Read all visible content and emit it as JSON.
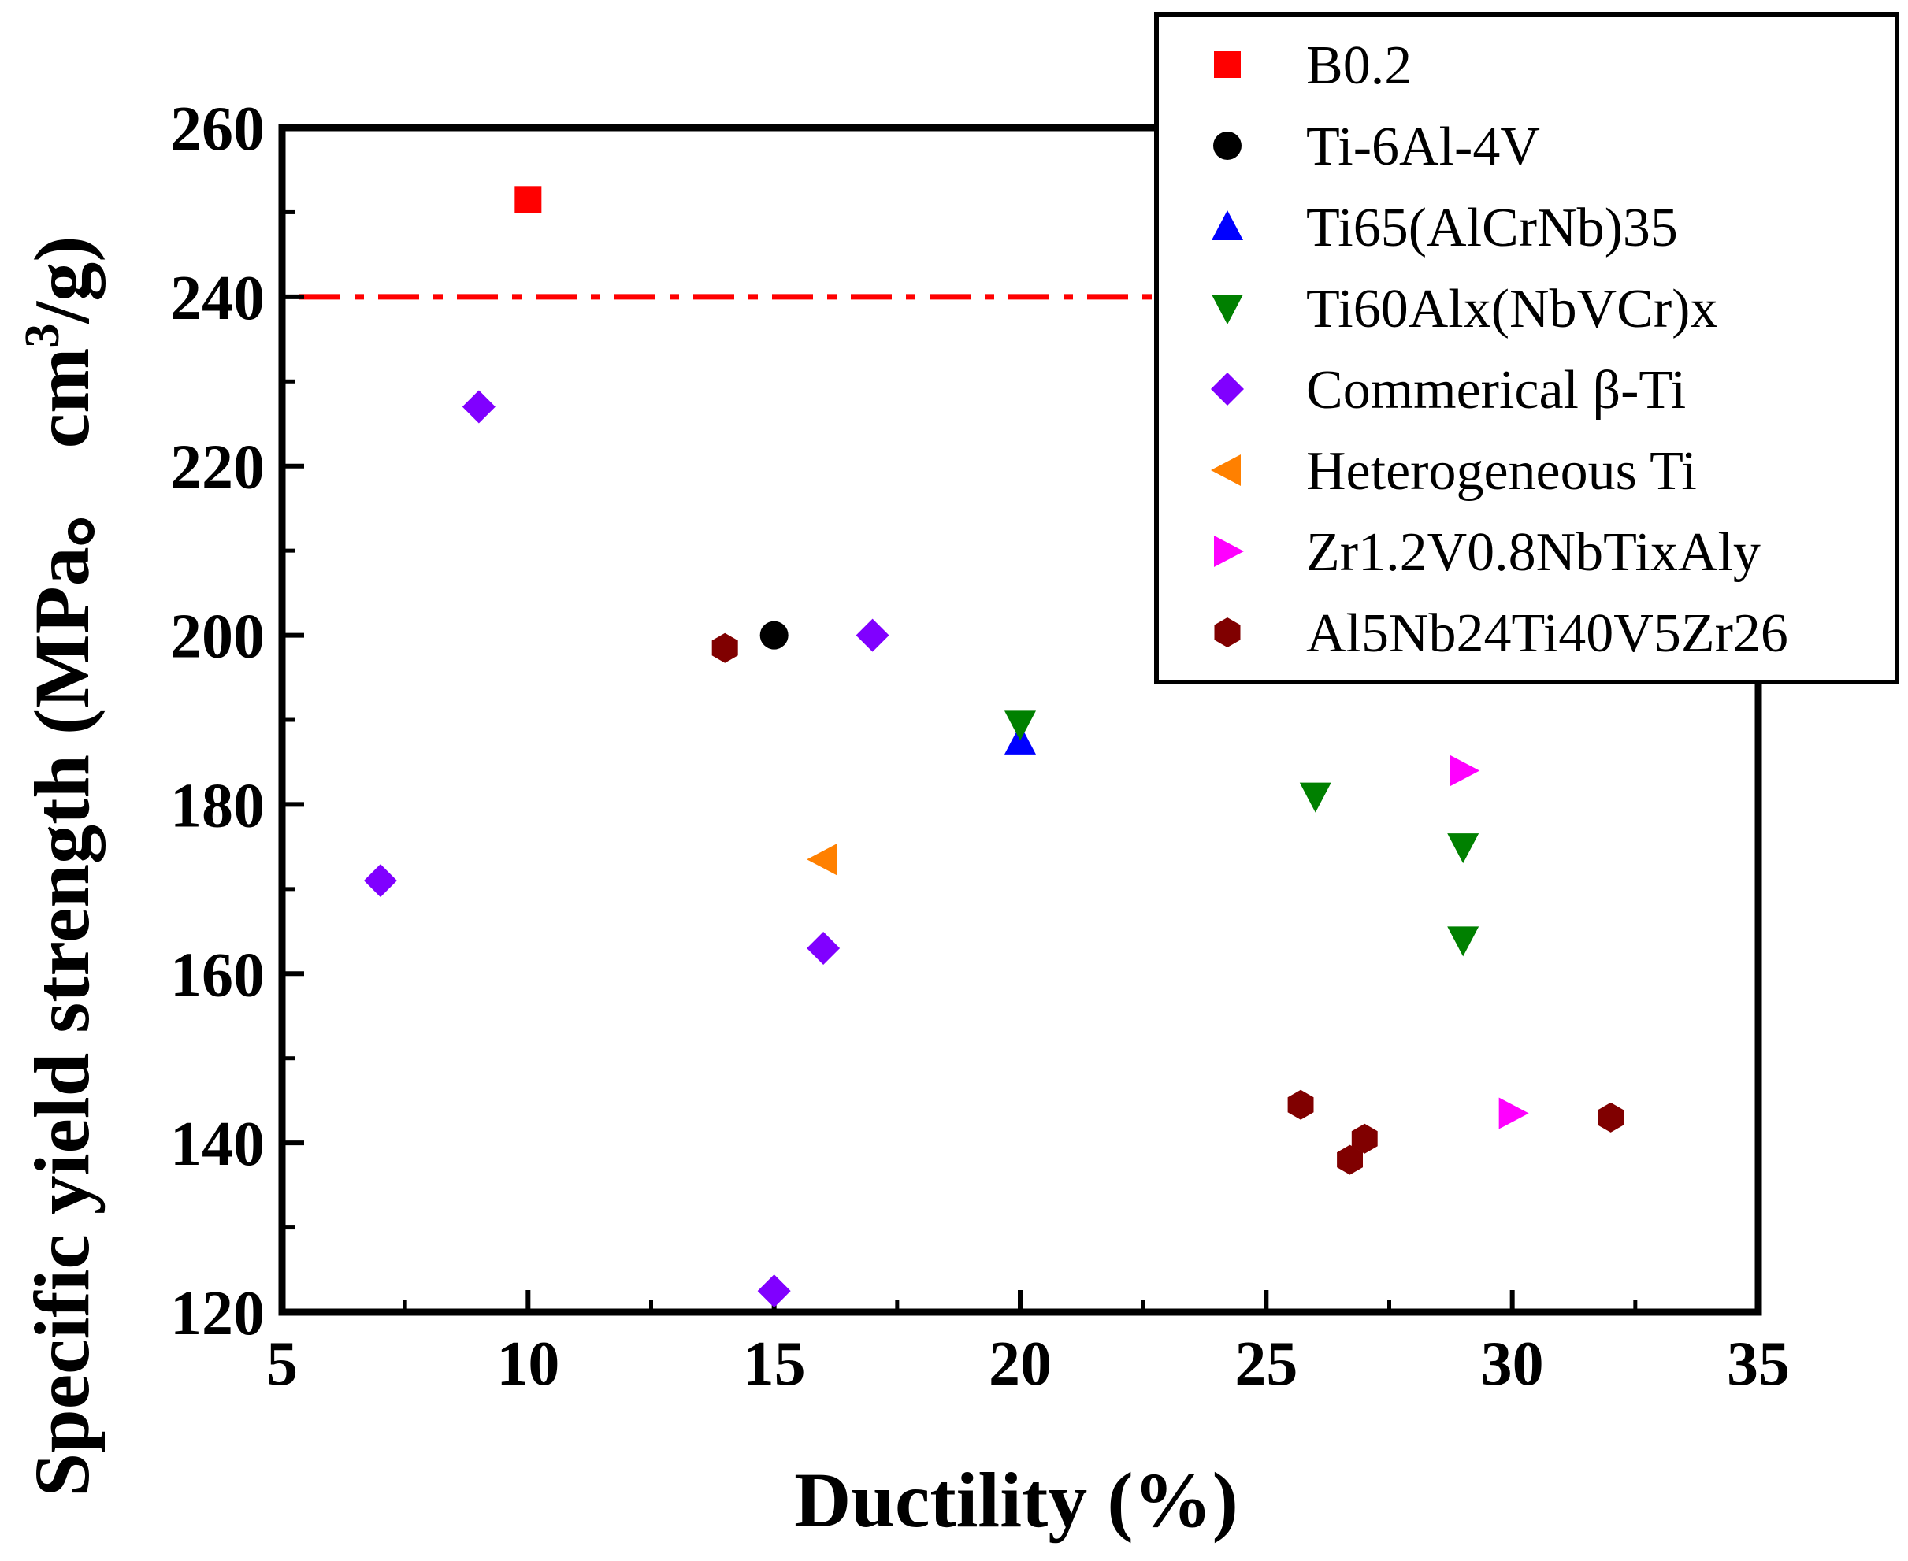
{
  "chart_data": {
    "type": "scatter",
    "title": "",
    "xlabel": "Ductility (%)",
    "ylabel_main": "Specific yield strength (MPa。 cm",
    "ylabel_sup": "3",
    "ylabel_tail": "/g)",
    "xlim": [
      5,
      35
    ],
    "ylim": [
      120,
      260
    ],
    "x_ticks": [
      "5",
      "10",
      "15",
      "20",
      "25",
      "30",
      "35"
    ],
    "y_ticks": [
      "120",
      "140",
      "160",
      "180",
      "200",
      "220",
      "240",
      "260"
    ],
    "grid": false,
    "legend_position": "top-right",
    "reference_line": {
      "y": 240,
      "style": "dash-dot",
      "color": "#ff0000"
    },
    "series": [
      {
        "name": "B0.2",
        "marker": "square",
        "color": "#ff0000",
        "points": [
          [
            10,
            251.5
          ]
        ]
      },
      {
        "name": "Ti-6Al-4V",
        "marker": "circle",
        "color": "#000000",
        "points": [
          [
            15,
            200
          ]
        ]
      },
      {
        "name": "Ti65(AlCrNb)35",
        "marker": "triangle-up",
        "color": "#0000ff",
        "points": [
          [
            20,
            187.5
          ]
        ]
      },
      {
        "name": "Ti60Alx(NbVCr)x",
        "marker": "triangle-down",
        "color": "#008000",
        "points": [
          [
            20,
            189.5
          ],
          [
            26,
            181
          ],
          [
            29,
            175
          ],
          [
            29,
            164
          ]
        ]
      },
      {
        "name": "Commerical β-Ti",
        "marker": "diamond",
        "color": "#8000ff",
        "points": [
          [
            9,
            227
          ],
          [
            7,
            171
          ],
          [
            17,
            200
          ],
          [
            16,
            163
          ],
          [
            15,
            122.5
          ]
        ]
      },
      {
        "name": "Heterogeneous Ti",
        "marker": "triangle-left",
        "color": "#ff8000",
        "points": [
          [
            16,
            173.5
          ]
        ]
      },
      {
        "name": "Zr1.2V0.8NbTixAly",
        "marker": "triangle-right",
        "color": "#ff00ff",
        "points": [
          [
            29,
            184
          ],
          [
            30,
            143.5
          ]
        ]
      },
      {
        "name": "Al5Nb24Ti40V5Zr26",
        "marker": "hexagon",
        "color": "#800000",
        "points": [
          [
            14,
            198.5
          ],
          [
            25.7,
            144.5
          ],
          [
            27,
            140.5
          ],
          [
            26.7,
            138
          ],
          [
            32,
            143
          ]
        ]
      }
    ]
  }
}
